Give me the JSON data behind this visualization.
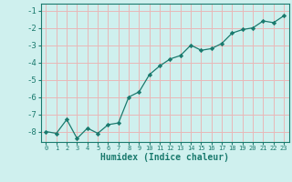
{
  "x": [
    0,
    1,
    2,
    3,
    4,
    5,
    6,
    7,
    8,
    9,
    10,
    11,
    12,
    13,
    14,
    15,
    16,
    17,
    18,
    19,
    20,
    21,
    22,
    23
  ],
  "y": [
    -8.0,
    -8.1,
    -7.3,
    -8.4,
    -7.8,
    -8.1,
    -7.6,
    -7.5,
    -6.0,
    -5.7,
    -4.7,
    -4.2,
    -3.8,
    -3.6,
    -3.0,
    -3.3,
    -3.2,
    -2.9,
    -2.3,
    -2.1,
    -2.0,
    -1.6,
    -1.7,
    -1.3
  ],
  "line_color": "#1a7a6e",
  "marker": "D",
  "marker_size": 2.2,
  "bg_color": "#cff0ee",
  "grid_color": "#e8b8b8",
  "xlabel": "Humidex (Indice chaleur)",
  "xlabel_fontsize": 7,
  "tick_fontsize": 6.5,
  "ylim": [
    -8.6,
    -0.6
  ],
  "xlim": [
    -0.5,
    23.5
  ],
  "yticks": [
    -8,
    -7,
    -6,
    -5,
    -4,
    -3,
    -2,
    -1
  ],
  "xticks": [
    0,
    1,
    2,
    3,
    4,
    5,
    6,
    7,
    8,
    9,
    10,
    11,
    12,
    13,
    14,
    15,
    16,
    17,
    18,
    19,
    20,
    21,
    22,
    23
  ]
}
